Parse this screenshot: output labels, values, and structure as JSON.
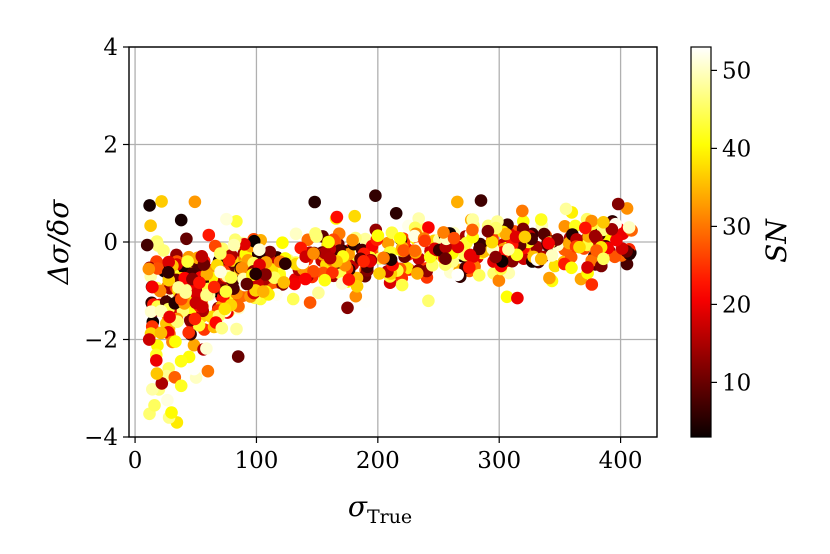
{
  "chart_data": {
    "type": "scatter",
    "title": "",
    "xlabel": "σ",
    "xlabel_sub": "True",
    "ylabel": "Δσ/δσ",
    "xlim": [
      -5,
      430
    ],
    "ylim": [
      -4,
      4
    ],
    "x_ticks": [
      0,
      100,
      200,
      300,
      400
    ],
    "y_ticks": [
      4,
      2,
      0,
      -2,
      -4
    ],
    "x_tick_labels": [
      "0",
      "100",
      "200",
      "300",
      "400"
    ],
    "y_tick_labels": [
      "4",
      "2",
      "0",
      "−2",
      "−4"
    ],
    "grid": true,
    "colorbar": {
      "label": "SN",
      "cmap": "hot",
      "range": [
        3,
        53
      ],
      "ticks": [
        10,
        20,
        30,
        40,
        50
      ],
      "tick_labels": [
        "10",
        "20",
        "30",
        "40",
        "50"
      ]
    },
    "scatter_model": {
      "note_points_generated": true,
      "count": 700,
      "x_range": [
        10,
        410
      ],
      "sn_range": [
        3,
        53
      ]
    },
    "highlight_points": [
      {
        "x": 12,
        "y": 0.75,
        "sn": 4
      },
      {
        "x": 38,
        "y": 0.45,
        "sn": 4
      },
      {
        "x": 148,
        "y": 0.82,
        "sn": 5
      },
      {
        "x": 198,
        "y": 0.95,
        "sn": 6
      },
      {
        "x": 285,
        "y": 0.85,
        "sn": 7
      },
      {
        "x": 85,
        "y": -2.35,
        "sn": 10
      },
      {
        "x": 28,
        "y": -3.6,
        "sn": 47
      },
      {
        "x": 16,
        "y": -3.35,
        "sn": 45
      },
      {
        "x": 30,
        "y": -3.5,
        "sn": 40
      },
      {
        "x": 22,
        "y": -2.9,
        "sn": 15
      },
      {
        "x": 38,
        "y": -2.95,
        "sn": 42
      },
      {
        "x": 60,
        "y": -2.65,
        "sn": 30
      },
      {
        "x": 18,
        "y": -2.7,
        "sn": 36
      },
      {
        "x": 398,
        "y": 0.78,
        "sn": 12
      },
      {
        "x": 407,
        "y": 0.3,
        "sn": 50
      },
      {
        "x": 355,
        "y": 0.68,
        "sn": 48
      },
      {
        "x": 175,
        "y": -1.35,
        "sn": 12
      },
      {
        "x": 315,
        "y": -1.15,
        "sn": 20
      }
    ]
  }
}
